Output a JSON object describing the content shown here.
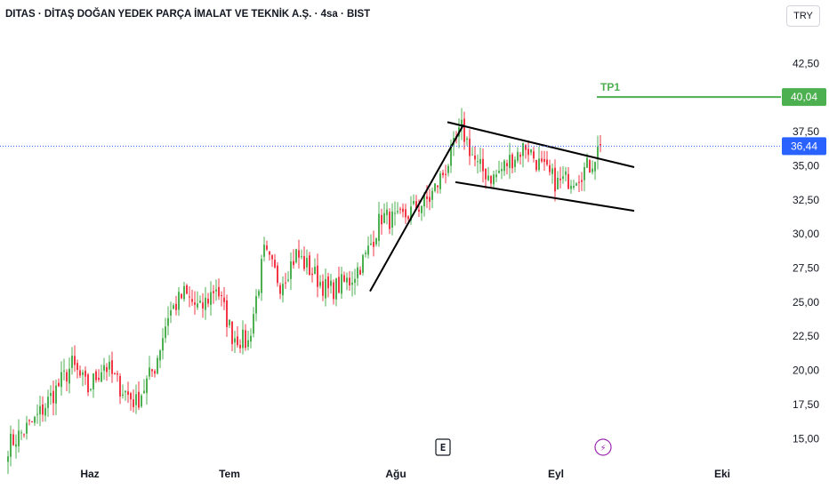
{
  "header": {
    "title": "DITAS · DİTAŞ DOĞAN YEDEK PARÇA İMALAT VE TEKNİK A.Ş. · 4sa · BIST",
    "currency": "TRY"
  },
  "colors": {
    "up": "#4caf50",
    "down": "#f23645",
    "price_line": "#2962ff",
    "target_line": "#4caf50",
    "trend_lines": "#000000",
    "earnings_marker": "#131722",
    "dividend_marker": "#9c27b0"
  },
  "chart_data": {
    "type": "candlestick",
    "y_axis": {
      "position": "right",
      "range": [
        14.5,
        45.0
      ],
      "ticks": [
        "15,00",
        "17,50",
        "20,00",
        "22,50",
        "25,00",
        "27,50",
        "30,00",
        "32,50",
        "35,00",
        "37,50",
        "42,50"
      ]
    },
    "x_axis": {
      "ticks": [
        "Haz",
        "Tem",
        "Ağu",
        "Eyl",
        "Eki"
      ]
    },
    "last_price": {
      "value": 36.44,
      "label": "36,44"
    },
    "target": {
      "name": "TP1",
      "value": 40.04,
      "label": "40,04"
    },
    "anchors": [
      {
        "bar": 0,
        "price": 14.5
      },
      {
        "bar": 10,
        "price": 16.3
      },
      {
        "bar": 18,
        "price": 18.6
      },
      {
        "bar": 24,
        "price": 20.4
      },
      {
        "bar": 30,
        "price": 18.6
      },
      {
        "bar": 36,
        "price": 20.5
      },
      {
        "bar": 42,
        "price": 18.8
      },
      {
        "bar": 48,
        "price": 17.6
      },
      {
        "bar": 55,
        "price": 20.3
      },
      {
        "bar": 60,
        "price": 24.1
      },
      {
        "bar": 66,
        "price": 25.6
      },
      {
        "bar": 72,
        "price": 24.4
      },
      {
        "bar": 78,
        "price": 26.2
      },
      {
        "bar": 84,
        "price": 22.6
      },
      {
        "bar": 90,
        "price": 22.0
      },
      {
        "bar": 96,
        "price": 28.6
      },
      {
        "bar": 102,
        "price": 26.4
      },
      {
        "bar": 108,
        "price": 28.5
      },
      {
        "bar": 114,
        "price": 27.2
      },
      {
        "bar": 120,
        "price": 25.8
      },
      {
        "bar": 128,
        "price": 26.6
      },
      {
        "bar": 134,
        "price": 28.3
      },
      {
        "bar": 140,
        "price": 31.3
      },
      {
        "bar": 146,
        "price": 30.9
      },
      {
        "bar": 152,
        "price": 31.8
      },
      {
        "bar": 158,
        "price": 32.6
      },
      {
        "bar": 164,
        "price": 34.8
      },
      {
        "bar": 170,
        "price": 37.7
      },
      {
        "bar": 176,
        "price": 34.9
      },
      {
        "bar": 182,
        "price": 34.1
      },
      {
        "bar": 188,
        "price": 35.4
      },
      {
        "bar": 194,
        "price": 36.5
      },
      {
        "bar": 200,
        "price": 34.8
      },
      {
        "bar": 206,
        "price": 33.7
      },
      {
        "bar": 212,
        "price": 34.2
      },
      {
        "bar": 218,
        "price": 35.0
      },
      {
        "bar": 222,
        "price": 36.5
      }
    ],
    "trend_lines": [
      {
        "name": "flagpole",
        "from": {
          "bar": 136,
          "price": 25.8
        },
        "to": {
          "bar": 171,
          "price": 38.0
        }
      },
      {
        "name": "upper-channel",
        "from": {
          "bar": 165,
          "price": 38.2
        },
        "to": {
          "bar": 235,
          "price": 34.9
        }
      },
      {
        "name": "lower-channel",
        "from": {
          "bar": 168,
          "price": 33.8
        },
        "to": {
          "bar": 235,
          "price": 31.7
        }
      }
    ],
    "markers": [
      {
        "type": "earnings",
        "label": "E",
        "bar": 163
      },
      {
        "type": "dividend",
        "label": "⚡",
        "bar": 223
      }
    ]
  }
}
